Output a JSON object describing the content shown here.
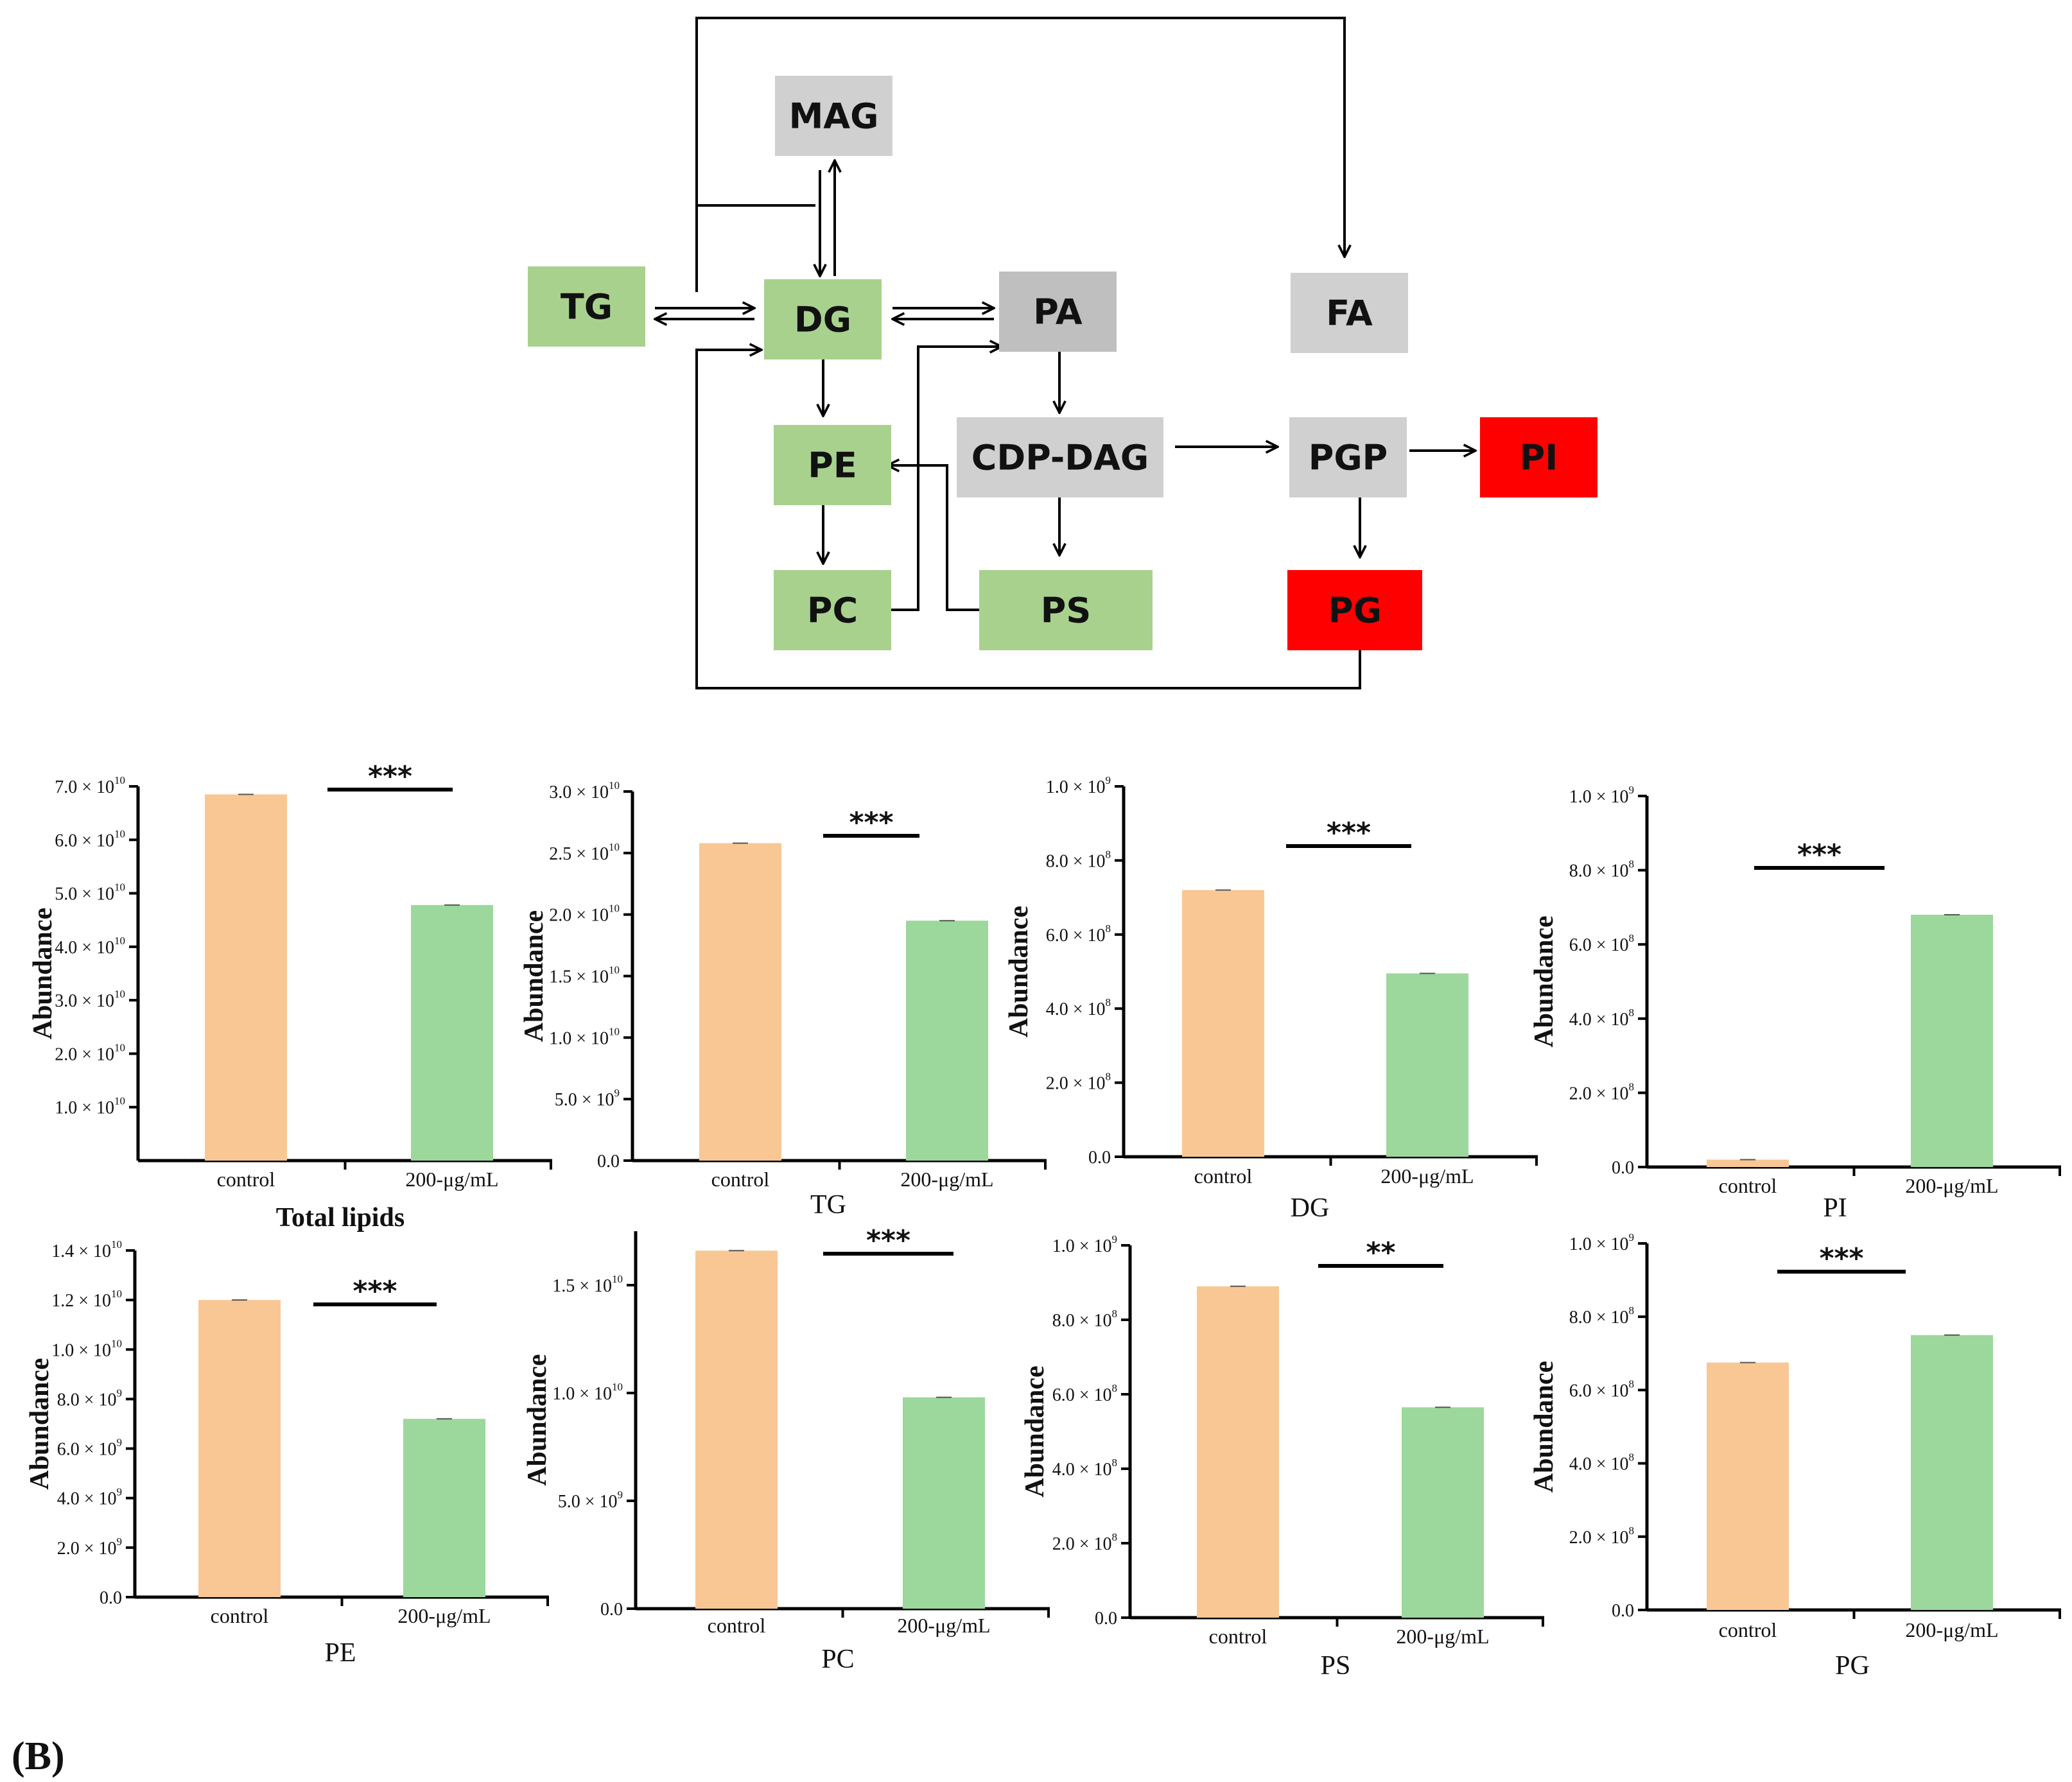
{
  "pathway": {
    "nodes": [
      {
        "id": "MAG",
        "label": "MAG",
        "status": "unchanged"
      },
      {
        "id": "TG",
        "label": "TG",
        "status": "decreased"
      },
      {
        "id": "DG",
        "label": "DG",
        "status": "decreased"
      },
      {
        "id": "PA",
        "label": "PA",
        "status": "unchanged-dark"
      },
      {
        "id": "FA",
        "label": "FA",
        "status": "unchanged"
      },
      {
        "id": "PE",
        "label": "PE",
        "status": "decreased"
      },
      {
        "id": "CDPDAG",
        "label": "CDP-DAG",
        "status": "unchanged"
      },
      {
        "id": "PGP",
        "label": "PGP",
        "status": "unchanged"
      },
      {
        "id": "PI",
        "label": "PI",
        "status": "increased"
      },
      {
        "id": "PC",
        "label": "PC",
        "status": "decreased"
      },
      {
        "id": "PS",
        "label": "PS",
        "status": "decreased"
      },
      {
        "id": "PG",
        "label": "PG",
        "status": "increased"
      }
    ],
    "colors": {
      "decreased": "#a9d18e",
      "increased": "#ff0000",
      "unchanged": "#d0d0d0",
      "unchanged-dark": "#bfbfbf"
    }
  },
  "panel_label": "(B)",
  "colors": {
    "control": "#f9c794",
    "treated": "#9cd79b"
  },
  "chart_data": [
    {
      "id": "total",
      "type": "bar",
      "title": "Total lipids",
      "title_bold": true,
      "ylabel": "Abundance",
      "categories": [
        "control",
        "200-μg/mL"
      ],
      "values": [
        68500000000.0,
        47800000000.0
      ],
      "ylim": [
        0,
        70000000000.0
      ],
      "yticks": [
        {
          "m": "1.0",
          "e": "10",
          "v": 10000000000.0
        },
        {
          "m": "2.0",
          "e": "10",
          "v": 20000000000.0
        },
        {
          "m": "3.0",
          "e": "10",
          "v": 30000000000.0
        },
        {
          "m": "4.0",
          "e": "10",
          "v": 40000000000.0
        },
        {
          "m": "5.0",
          "e": "10",
          "v": 50000000000.0
        },
        {
          "m": "6.0",
          "e": "10",
          "v": 60000000000.0
        },
        {
          "m": "7.0",
          "e": "10",
          "v": 70000000000.0
        }
      ],
      "significance": "***"
    },
    {
      "id": "tg",
      "type": "bar",
      "title": "TG",
      "title_bold": false,
      "ylabel": "Abundance",
      "categories": [
        "control",
        "200-μg/mL"
      ],
      "values": [
        25800000000.0,
        19500000000.0
      ],
      "ylim": [
        0,
        30000000000.0
      ],
      "yticks": [
        {
          "m": "0.0",
          "e": "",
          "v": 0
        },
        {
          "m": "5.0",
          "e": "9",
          "v": 5000000000.0
        },
        {
          "m": "1.0",
          "e": "10",
          "v": 10000000000.0
        },
        {
          "m": "1.5",
          "e": "10",
          "v": 15000000000.0
        },
        {
          "m": "2.0",
          "e": "10",
          "v": 20000000000.0
        },
        {
          "m": "2.5",
          "e": "10",
          "v": 25000000000.0
        },
        {
          "m": "3.0",
          "e": "10",
          "v": 30000000000.0
        }
      ],
      "significance": "***"
    },
    {
      "id": "dg",
      "type": "bar",
      "title": "DG",
      "title_bold": false,
      "ylabel": "Abundance",
      "categories": [
        "control",
        "200-μg/mL"
      ],
      "values": [
        720000000.0,
        495000000.0
      ],
      "ylim": [
        0,
        1000000000.0
      ],
      "yticks": [
        {
          "m": "0.0",
          "e": "",
          "v": 0
        },
        {
          "m": "2.0",
          "e": "8",
          "v": 200000000.0
        },
        {
          "m": "4.0",
          "e": "8",
          "v": 400000000.0
        },
        {
          "m": "6.0",
          "e": "8",
          "v": 600000000.0
        },
        {
          "m": "8.0",
          "e": "8",
          "v": 800000000.0
        },
        {
          "m": "1.0",
          "e": "9",
          "v": 1000000000.0
        }
      ],
      "significance": "***"
    },
    {
      "id": "pi",
      "type": "bar",
      "title": "PI",
      "title_bold": false,
      "ylabel": "Abundance",
      "categories": [
        "control",
        "200-μg/mL"
      ],
      "values": [
        20000000.0,
        680000000.0
      ],
      "ylim": [
        0,
        1000000000.0
      ],
      "yticks": [
        {
          "m": "0.0",
          "e": "",
          "v": 0
        },
        {
          "m": "2.0",
          "e": "8",
          "v": 200000000.0
        },
        {
          "m": "4.0",
          "e": "8",
          "v": 400000000.0
        },
        {
          "m": "6.0",
          "e": "8",
          "v": 600000000.0
        },
        {
          "m": "8.0",
          "e": "8",
          "v": 800000000.0
        },
        {
          "m": "1.0",
          "e": "9",
          "v": 1000000000.0
        }
      ],
      "significance": "***"
    },
    {
      "id": "pe",
      "type": "bar",
      "title": "PE",
      "title_bold": false,
      "ylabel": "Abundance",
      "categories": [
        "control",
        "200-μg/mL"
      ],
      "values": [
        12000000000.0,
        7200000000.0
      ],
      "ylim": [
        0,
        14000000000.0
      ],
      "yticks": [
        {
          "m": "0.0",
          "e": "",
          "v": 0
        },
        {
          "m": "2.0",
          "e": "9",
          "v": 2000000000.0
        },
        {
          "m": "4.0",
          "e": "9",
          "v": 4000000000.0
        },
        {
          "m": "6.0",
          "e": "9",
          "v": 6000000000.0
        },
        {
          "m": "8.0",
          "e": "9",
          "v": 8000000000.0
        },
        {
          "m": "1.0",
          "e": "10",
          "v": 10000000000.0
        },
        {
          "m": "1.2",
          "e": "10",
          "v": 12000000000.0
        },
        {
          "m": "1.4",
          "e": "10",
          "v": 14000000000.0
        }
      ],
      "significance": "***"
    },
    {
      "id": "pc",
      "type": "bar",
      "title": "PC",
      "title_bold": false,
      "ylabel": "Abundance",
      "categories": [
        "control",
        "200-μg/mL"
      ],
      "values": [
        16600000000.0,
        9800000000.0
      ],
      "ylim": [
        0,
        17500000000.0
      ],
      "yticks": [
        {
          "m": "0.0",
          "e": "",
          "v": 0
        },
        {
          "m": "5.0",
          "e": "9",
          "v": 5000000000.0
        },
        {
          "m": "1.0",
          "e": "10",
          "v": 10000000000.0
        },
        {
          "m": "1.5",
          "e": "10",
          "v": 15000000000.0
        }
      ],
      "significance": "***"
    },
    {
      "id": "ps",
      "type": "bar",
      "title": "PS",
      "title_bold": false,
      "ylabel": "Abundance",
      "categories": [
        "control",
        "200-μg/mL"
      ],
      "values": [
        890000000.0,
        565000000.0
      ],
      "ylim": [
        0,
        1000000000.0
      ],
      "yticks": [
        {
          "m": "0.0",
          "e": "",
          "v": 0
        },
        {
          "m": "2.0",
          "e": "8",
          "v": 200000000.0
        },
        {
          "m": "4.0",
          "e": "8",
          "v": 400000000.0
        },
        {
          "m": "6.0",
          "e": "8",
          "v": 600000000.0
        },
        {
          "m": "8.0",
          "e": "8",
          "v": 800000000.0
        },
        {
          "m": "1.0",
          "e": "9",
          "v": 1000000000.0
        }
      ],
      "significance": "**"
    },
    {
      "id": "pg",
      "type": "bar",
      "title": "PG",
      "title_bold": false,
      "ylabel": "Abundance",
      "categories": [
        "control",
        "200-μg/mL"
      ],
      "values": [
        675000000.0,
        750000000.0
      ],
      "ylim": [
        0,
        1000000000.0
      ],
      "yticks": [
        {
          "m": "0.0",
          "e": "",
          "v": 0
        },
        {
          "m": "2.0",
          "e": "8",
          "v": 200000000.0
        },
        {
          "m": "4.0",
          "e": "8",
          "v": 400000000.0
        },
        {
          "m": "6.0",
          "e": "8",
          "v": 600000000.0
        },
        {
          "m": "8.0",
          "e": "8",
          "v": 800000000.0
        },
        {
          "m": "1.0",
          "e": "9",
          "v": 1000000000.0
        }
      ],
      "significance": "***"
    }
  ]
}
